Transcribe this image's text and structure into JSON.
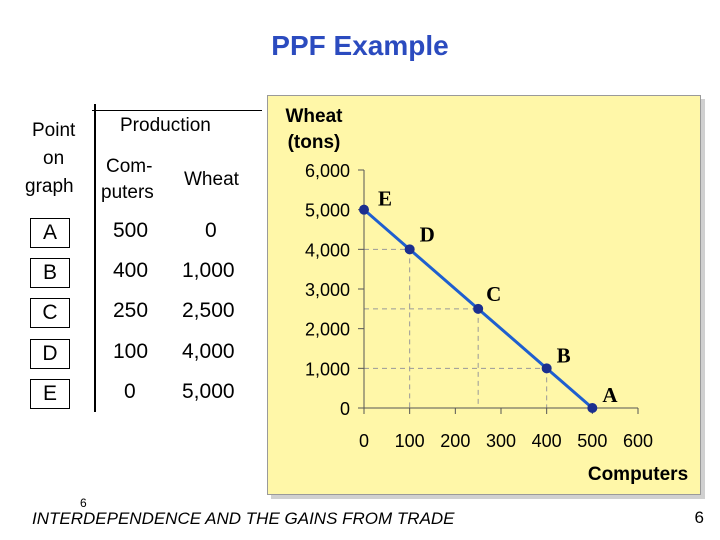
{
  "title": "PPF Example",
  "table": {
    "col_point": [
      "Point",
      "on",
      "graph"
    ],
    "col_production": "Production",
    "col_computers": [
      "Com-",
      "puters"
    ],
    "col_wheat": "Wheat",
    "rows": [
      {
        "point": "A",
        "computers": "500",
        "wheat": "0"
      },
      {
        "point": "B",
        "computers": "400",
        "wheat": "1,000"
      },
      {
        "point": "C",
        "computers": "250",
        "wheat": "2,500"
      },
      {
        "point": "D",
        "computers": "100",
        "wheat": "4,000"
      },
      {
        "point": "E",
        "computers": "0",
        "wheat": "5,000"
      }
    ]
  },
  "chart_data": {
    "type": "line",
    "ylabel": [
      "Wheat",
      "(tons)"
    ],
    "xlabel": "Computers",
    "x_ticks": [
      "0",
      "100",
      "200",
      "300",
      "400",
      "500",
      "600"
    ],
    "y_ticks": [
      "0",
      "1,000",
      "2,000",
      "3,000",
      "4,000",
      "5,000",
      "6,000"
    ],
    "xlim": [
      0,
      600
    ],
    "ylim": [
      0,
      6000
    ],
    "points": [
      {
        "label": "E",
        "x": 0,
        "y": 5000
      },
      {
        "label": "D",
        "x": 100,
        "y": 4000
      },
      {
        "label": "C",
        "x": 250,
        "y": 2500
      },
      {
        "label": "B",
        "x": 400,
        "y": 1000
      },
      {
        "label": "A",
        "x": 500,
        "y": 0
      }
    ],
    "line_color": "#1f5fcf",
    "marker_color": "#1b2f8f",
    "guide_lines": "dashed",
    "background": "#fff7a8"
  },
  "footer": "INTERDEPENDENCE AND THE GAINS FROM TRADE",
  "slide_number_small": "6",
  "slide_number": "6"
}
